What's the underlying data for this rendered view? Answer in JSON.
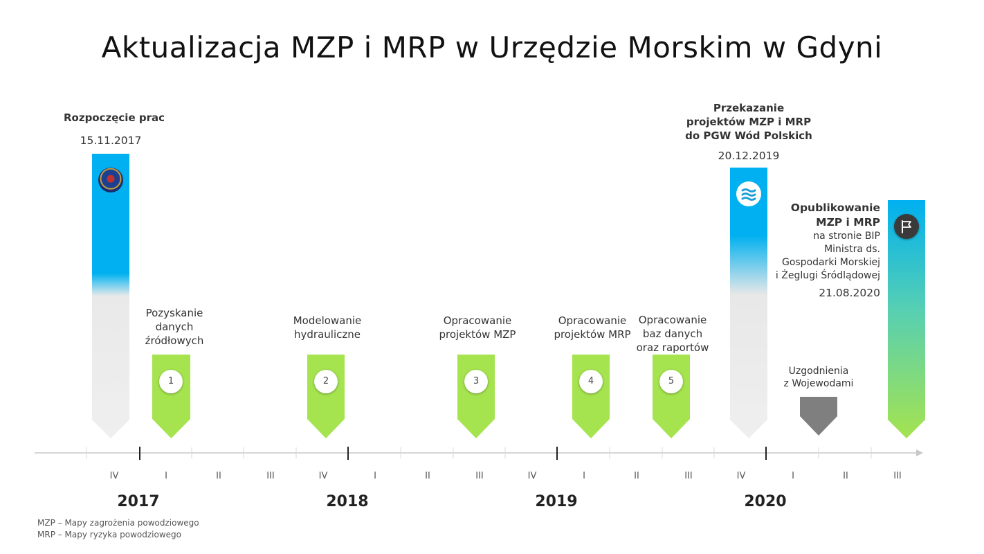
{
  "title": "Aktualizacja MZP i MRP w Urzędzie Morskim w Gdyni",
  "milestones": {
    "start": {
      "label": "Rozpoczęcie prac",
      "date": "15.11.2017"
    },
    "handover": {
      "line1": "Przekazanie",
      "line2": "projektów MZP i MRP",
      "line3": "do PGW Wód Polskich",
      "date": "20.12.2019"
    },
    "published": {
      "line1": "Opublikowanie",
      "line2": "MZP i MRP",
      "line3": "na stronie BIP",
      "line4": "Ministra ds.",
      "line5": "Gospodarki Morskiej",
      "line6": "i Żeglugi Śródlądowej",
      "date": "21.08.2020"
    }
  },
  "steps": [
    {
      "num": "1",
      "line1": "Pozyskanie",
      "line2": "danych",
      "line3": "źródłowych"
    },
    {
      "num": "2",
      "line1": "Modelowanie",
      "line2": "hydrauliczne"
    },
    {
      "num": "3",
      "line1": "Opracowanie",
      "line2": "projektów MZP"
    },
    {
      "num": "4",
      "line1": "Opracowanie",
      "line2": "projektów MRP"
    },
    {
      "num": "5",
      "line1": "Opracowanie",
      "line2": "baz danych",
      "line3": "oraz raportów"
    }
  ],
  "agreement": {
    "line1": "Uzgodnienia",
    "line2": "z Wojewodami"
  },
  "quarters": [
    "IV",
    "I",
    "II",
    "III",
    "IV",
    "I",
    "II",
    "III",
    "IV",
    "I",
    "II",
    "III",
    "IV",
    "I",
    "II",
    "III"
  ],
  "years": [
    "2017",
    "2018",
    "2019",
    "2020"
  ],
  "legend": {
    "mzp": "MZP – Mapy zagrożenia powodziowego",
    "mrp": "MRP – Mapy ryzyka powodziowego"
  },
  "colors": {
    "blue": "#00b0f0",
    "green": "#a5e34f",
    "gray_bar": "#f0f0f0",
    "dark_arrow": "#7f7f7f"
  },
  "icons": [
    "maritime-office-emblem-icon",
    "water-waves-icon",
    "flag-icon"
  ]
}
